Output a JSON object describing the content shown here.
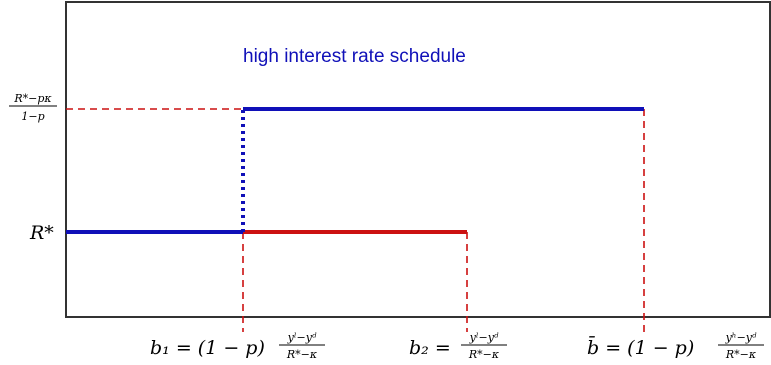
{
  "title": "high interest rate schedule",
  "colors": {
    "blue": "#1010b8",
    "red": "#cc1111",
    "axis": "#333333"
  },
  "y_labels": {
    "high": {
      "numerator": "R*−pκ",
      "denominator": "1−p"
    },
    "low": "R*"
  },
  "x_labels": {
    "b1": {
      "lhs": "b₁ = (1 − p)",
      "numerator": "yˡ−yᵈ",
      "denominator": "R*−κ"
    },
    "b2": {
      "lhs": "b₂ =",
      "numerator": "yˡ−yᵈ",
      "denominator": "R*−κ"
    },
    "bbar": {
      "lhs": "b̄ = (1 − p)",
      "numerator": "yʰ−yᵈ",
      "denominator": "R*−κ"
    }
  }
}
